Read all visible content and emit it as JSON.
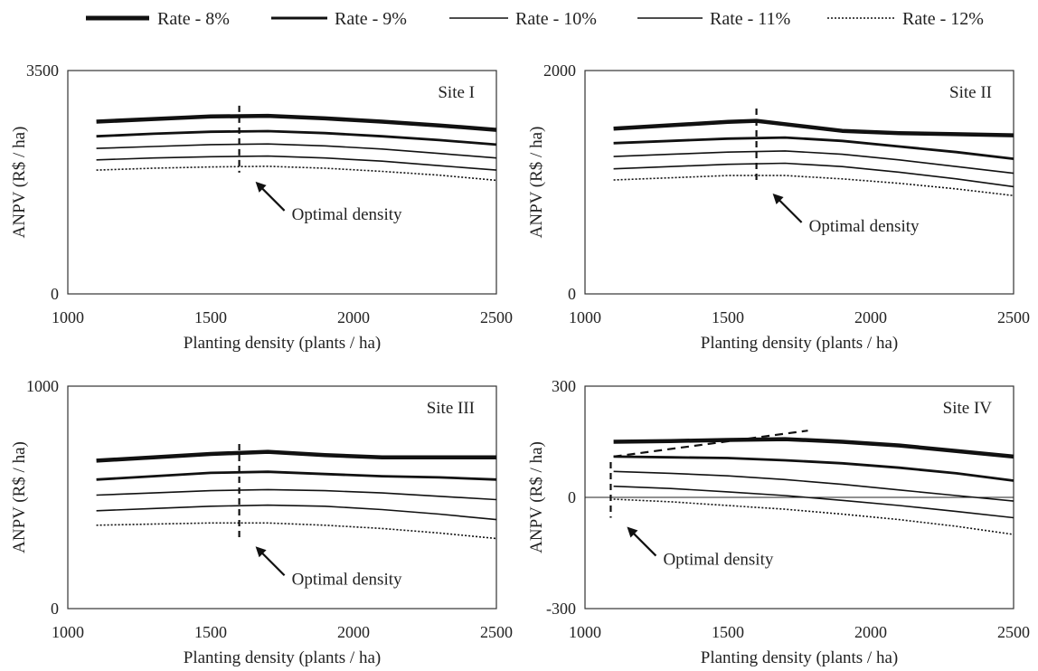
{
  "legend": [
    {
      "label": "Rate - 8%",
      "width": 5,
      "dash": ""
    },
    {
      "label": "Rate - 9%",
      "width": 3,
      "dash": ""
    },
    {
      "label": "Rate - 10%",
      "width": 1.6,
      "dash": ""
    },
    {
      "label": "Rate - 11%",
      "width": 1.6,
      "dash": ""
    },
    {
      "label": "Rate - 12%",
      "width": 1.6,
      "dash": "2,2"
    }
  ],
  "chart_data": [
    {
      "type": "line",
      "title": "Site I",
      "xlabel": "Planting density (plants / ha)",
      "ylabel": "ANPV  (R$ / ha)",
      "xlim": [
        1000,
        2500
      ],
      "ylim": [
        0,
        3500
      ],
      "x_ticks": [
        "1000",
        "1500",
        "2000",
        "2500"
      ],
      "y_ticks": [
        "0",
        "3500"
      ],
      "annotation": "Optimal density",
      "optimal_x": 1600,
      "optimal_marker_range": [
        1900,
        2950
      ],
      "series": [
        {
          "name": "Rate - 8%",
          "x": [
            1100,
            1300,
            1500,
            1700,
            1900,
            2100,
            2300,
            2500
          ],
          "y": [
            2700,
            2740,
            2780,
            2790,
            2750,
            2700,
            2640,
            2570
          ]
        },
        {
          "name": "Rate - 9%",
          "x": [
            1100,
            1300,
            1500,
            1700,
            1900,
            2100,
            2300,
            2500
          ],
          "y": [
            2470,
            2510,
            2540,
            2550,
            2520,
            2470,
            2410,
            2340
          ]
        },
        {
          "name": "Rate - 10%",
          "x": [
            1100,
            1300,
            1500,
            1700,
            1900,
            2100,
            2300,
            2500
          ],
          "y": [
            2280,
            2310,
            2340,
            2350,
            2320,
            2270,
            2200,
            2130
          ]
        },
        {
          "name": "Rate - 11%",
          "x": [
            1100,
            1300,
            1500,
            1700,
            1900,
            2100,
            2300,
            2500
          ],
          "y": [
            2100,
            2130,
            2150,
            2160,
            2130,
            2080,
            2010,
            1940
          ]
        },
        {
          "name": "Rate - 12%",
          "x": [
            1100,
            1300,
            1500,
            1700,
            1900,
            2100,
            2300,
            2500
          ],
          "y": [
            1940,
            1970,
            1990,
            2000,
            1970,
            1920,
            1860,
            1780
          ]
        }
      ]
    },
    {
      "type": "line",
      "title": "Site II",
      "xlabel": "Planting density (plants / ha)",
      "ylabel": "ANPV  (R$ / ha)",
      "xlim": [
        1000,
        2500
      ],
      "ylim": [
        0,
        2000
      ],
      "x_ticks": [
        "1000",
        "1500",
        "2000",
        "2500"
      ],
      "y_ticks": [
        "0",
        "2000"
      ],
      "annotation": "Optimal density",
      "optimal_x": 1600,
      "optimal_marker_range": [
        980,
        1660
      ],
      "series": [
        {
          "name": "Rate - 8%",
          "x": [
            1100,
            1300,
            1500,
            1600,
            1700,
            1900,
            2100,
            2300,
            2500
          ],
          "y": [
            1480,
            1510,
            1540,
            1550,
            1520,
            1460,
            1440,
            1430,
            1420
          ]
        },
        {
          "name": "Rate - 9%",
          "x": [
            1100,
            1300,
            1500,
            1700,
            1900,
            2100,
            2300,
            2500
          ],
          "y": [
            1350,
            1370,
            1390,
            1400,
            1370,
            1320,
            1270,
            1210
          ]
        },
        {
          "name": "Rate - 10%",
          "x": [
            1100,
            1300,
            1500,
            1700,
            1900,
            2100,
            2300,
            2500
          ],
          "y": [
            1230,
            1250,
            1270,
            1280,
            1250,
            1200,
            1140,
            1080
          ]
        },
        {
          "name": "Rate - 11%",
          "x": [
            1100,
            1300,
            1500,
            1700,
            1900,
            2100,
            2300,
            2500
          ],
          "y": [
            1120,
            1140,
            1160,
            1170,
            1140,
            1090,
            1030,
            960
          ]
        },
        {
          "name": "Rate - 12%",
          "x": [
            1100,
            1300,
            1500,
            1700,
            1900,
            2100,
            2300,
            2500
          ],
          "y": [
            1020,
            1040,
            1060,
            1060,
            1030,
            990,
            940,
            880
          ]
        }
      ]
    },
    {
      "type": "line",
      "title": "Site III",
      "xlabel": "Planting density (plants / ha)",
      "ylabel": "ANPV  (R$ / ha)",
      "xlim": [
        1000,
        2500
      ],
      "ylim": [
        0,
        1000
      ],
      "x_ticks": [
        "1000",
        "1500",
        "2000",
        "2500"
      ],
      "y_ticks": [
        "0",
        "1000"
      ],
      "annotation": "Optimal density",
      "optimal_x": 1600,
      "optimal_marker_range": [
        320,
        740
      ],
      "series": [
        {
          "name": "Rate - 8%",
          "x": [
            1100,
            1300,
            1500,
            1700,
            1900,
            2100,
            2300,
            2500
          ],
          "y": [
            665,
            680,
            695,
            705,
            690,
            680,
            680,
            680
          ]
        },
        {
          "name": "Rate - 9%",
          "x": [
            1100,
            1300,
            1500,
            1700,
            1900,
            2100,
            2300,
            2500
          ],
          "y": [
            580,
            595,
            610,
            615,
            605,
            595,
            590,
            580
          ]
        },
        {
          "name": "Rate - 10%",
          "x": [
            1100,
            1300,
            1500,
            1700,
            1900,
            2100,
            2300,
            2500
          ],
          "y": [
            510,
            520,
            530,
            535,
            530,
            520,
            505,
            490
          ]
        },
        {
          "name": "Rate - 11%",
          "x": [
            1100,
            1300,
            1500,
            1700,
            1900,
            2100,
            2300,
            2500
          ],
          "y": [
            440,
            450,
            460,
            465,
            460,
            445,
            425,
            400
          ]
        },
        {
          "name": "Rate - 12%",
          "x": [
            1100,
            1300,
            1500,
            1700,
            1900,
            2100,
            2300,
            2500
          ],
          "y": [
            375,
            380,
            385,
            385,
            375,
            360,
            340,
            315
          ]
        }
      ]
    },
    {
      "type": "line",
      "title": "Site IV",
      "xlabel": "Planting density (plants / ha)",
      "ylabel": "ANPV  (R$ / ha)",
      "xlim": [
        1000,
        2500
      ],
      "ylim": [
        -300,
        300
      ],
      "x_ticks": [
        "1000",
        "1500",
        "2000",
        "2500"
      ],
      "y_ticks": [
        "-300",
        "0",
        "300"
      ],
      "annotation": "Optimal density",
      "optimal_x": 1090,
      "optimal_marker_range": [
        -55,
        95
      ],
      "extra_dashed_line": {
        "x": [
          1100,
          1780
        ],
        "y": [
          110,
          180
        ]
      },
      "series": [
        {
          "name": "Rate - 8%",
          "x": [
            1100,
            1300,
            1500,
            1700,
            1900,
            2100,
            2300,
            2500
          ],
          "y": [
            150,
            152,
            155,
            157,
            150,
            140,
            125,
            110
          ]
        },
        {
          "name": "Rate - 9%",
          "x": [
            1100,
            1300,
            1500,
            1700,
            1900,
            2100,
            2300,
            2500
          ],
          "y": [
            110,
            108,
            106,
            100,
            92,
            80,
            65,
            45
          ]
        },
        {
          "name": "Rate - 10%",
          "x": [
            1100,
            1300,
            1500,
            1700,
            1900,
            2100,
            2300,
            2500
          ],
          "y": [
            70,
            65,
            58,
            48,
            35,
            20,
            5,
            -10
          ]
        },
        {
          "name": "Rate - 11%",
          "x": [
            1100,
            1300,
            1500,
            1700,
            1900,
            2100,
            2300,
            2500
          ],
          "y": [
            30,
            24,
            15,
            5,
            -8,
            -22,
            -38,
            -55
          ]
        },
        {
          "name": "Rate - 12%",
          "x": [
            1100,
            1300,
            1500,
            1700,
            1900,
            2100,
            2300,
            2500
          ],
          "y": [
            -5,
            -12,
            -22,
            -32,
            -45,
            -60,
            -78,
            -100
          ]
        }
      ]
    }
  ]
}
